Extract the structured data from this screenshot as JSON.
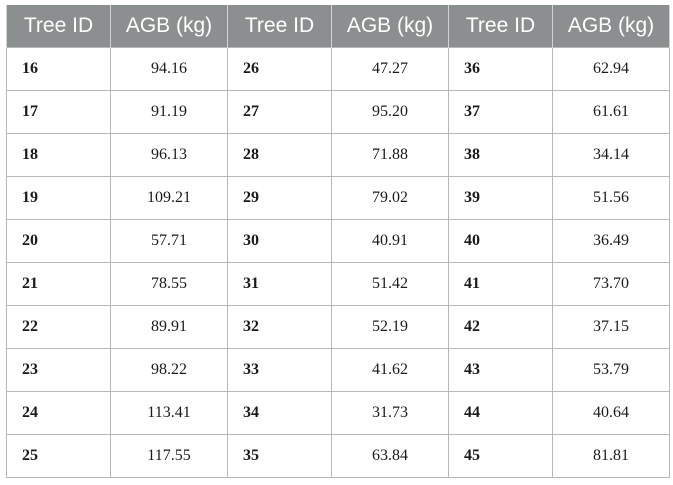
{
  "table": {
    "headers": [
      "Tree ID",
      "AGB (kg)",
      "Tree ID",
      "AGB (kg)",
      "Tree ID",
      "AGB (kg)"
    ],
    "rows": [
      [
        "16",
        "94.16",
        "26",
        "47.27",
        "36",
        "62.94"
      ],
      [
        "17",
        "91.19",
        "27",
        "95.20",
        "37",
        "61.61"
      ],
      [
        "18",
        "96.13",
        "28",
        "71.88",
        "38",
        "34.14"
      ],
      [
        "19",
        "109.21",
        "29",
        "79.02",
        "39",
        "51.56"
      ],
      [
        "20",
        "57.71",
        "30",
        "40.91",
        "40",
        "36.49"
      ],
      [
        "21",
        "78.55",
        "31",
        "51.42",
        "41",
        "73.70"
      ],
      [
        "22",
        "89.91",
        "32",
        "52.19",
        "42",
        "37.15"
      ],
      [
        "23",
        "98.22",
        "33",
        "41.62",
        "43",
        "53.79"
      ],
      [
        "24",
        "113.41",
        "34",
        "31.73",
        "44",
        "40.64"
      ],
      [
        "25",
        "117.55",
        "35",
        "63.84",
        "45",
        "81.81"
      ]
    ]
  }
}
